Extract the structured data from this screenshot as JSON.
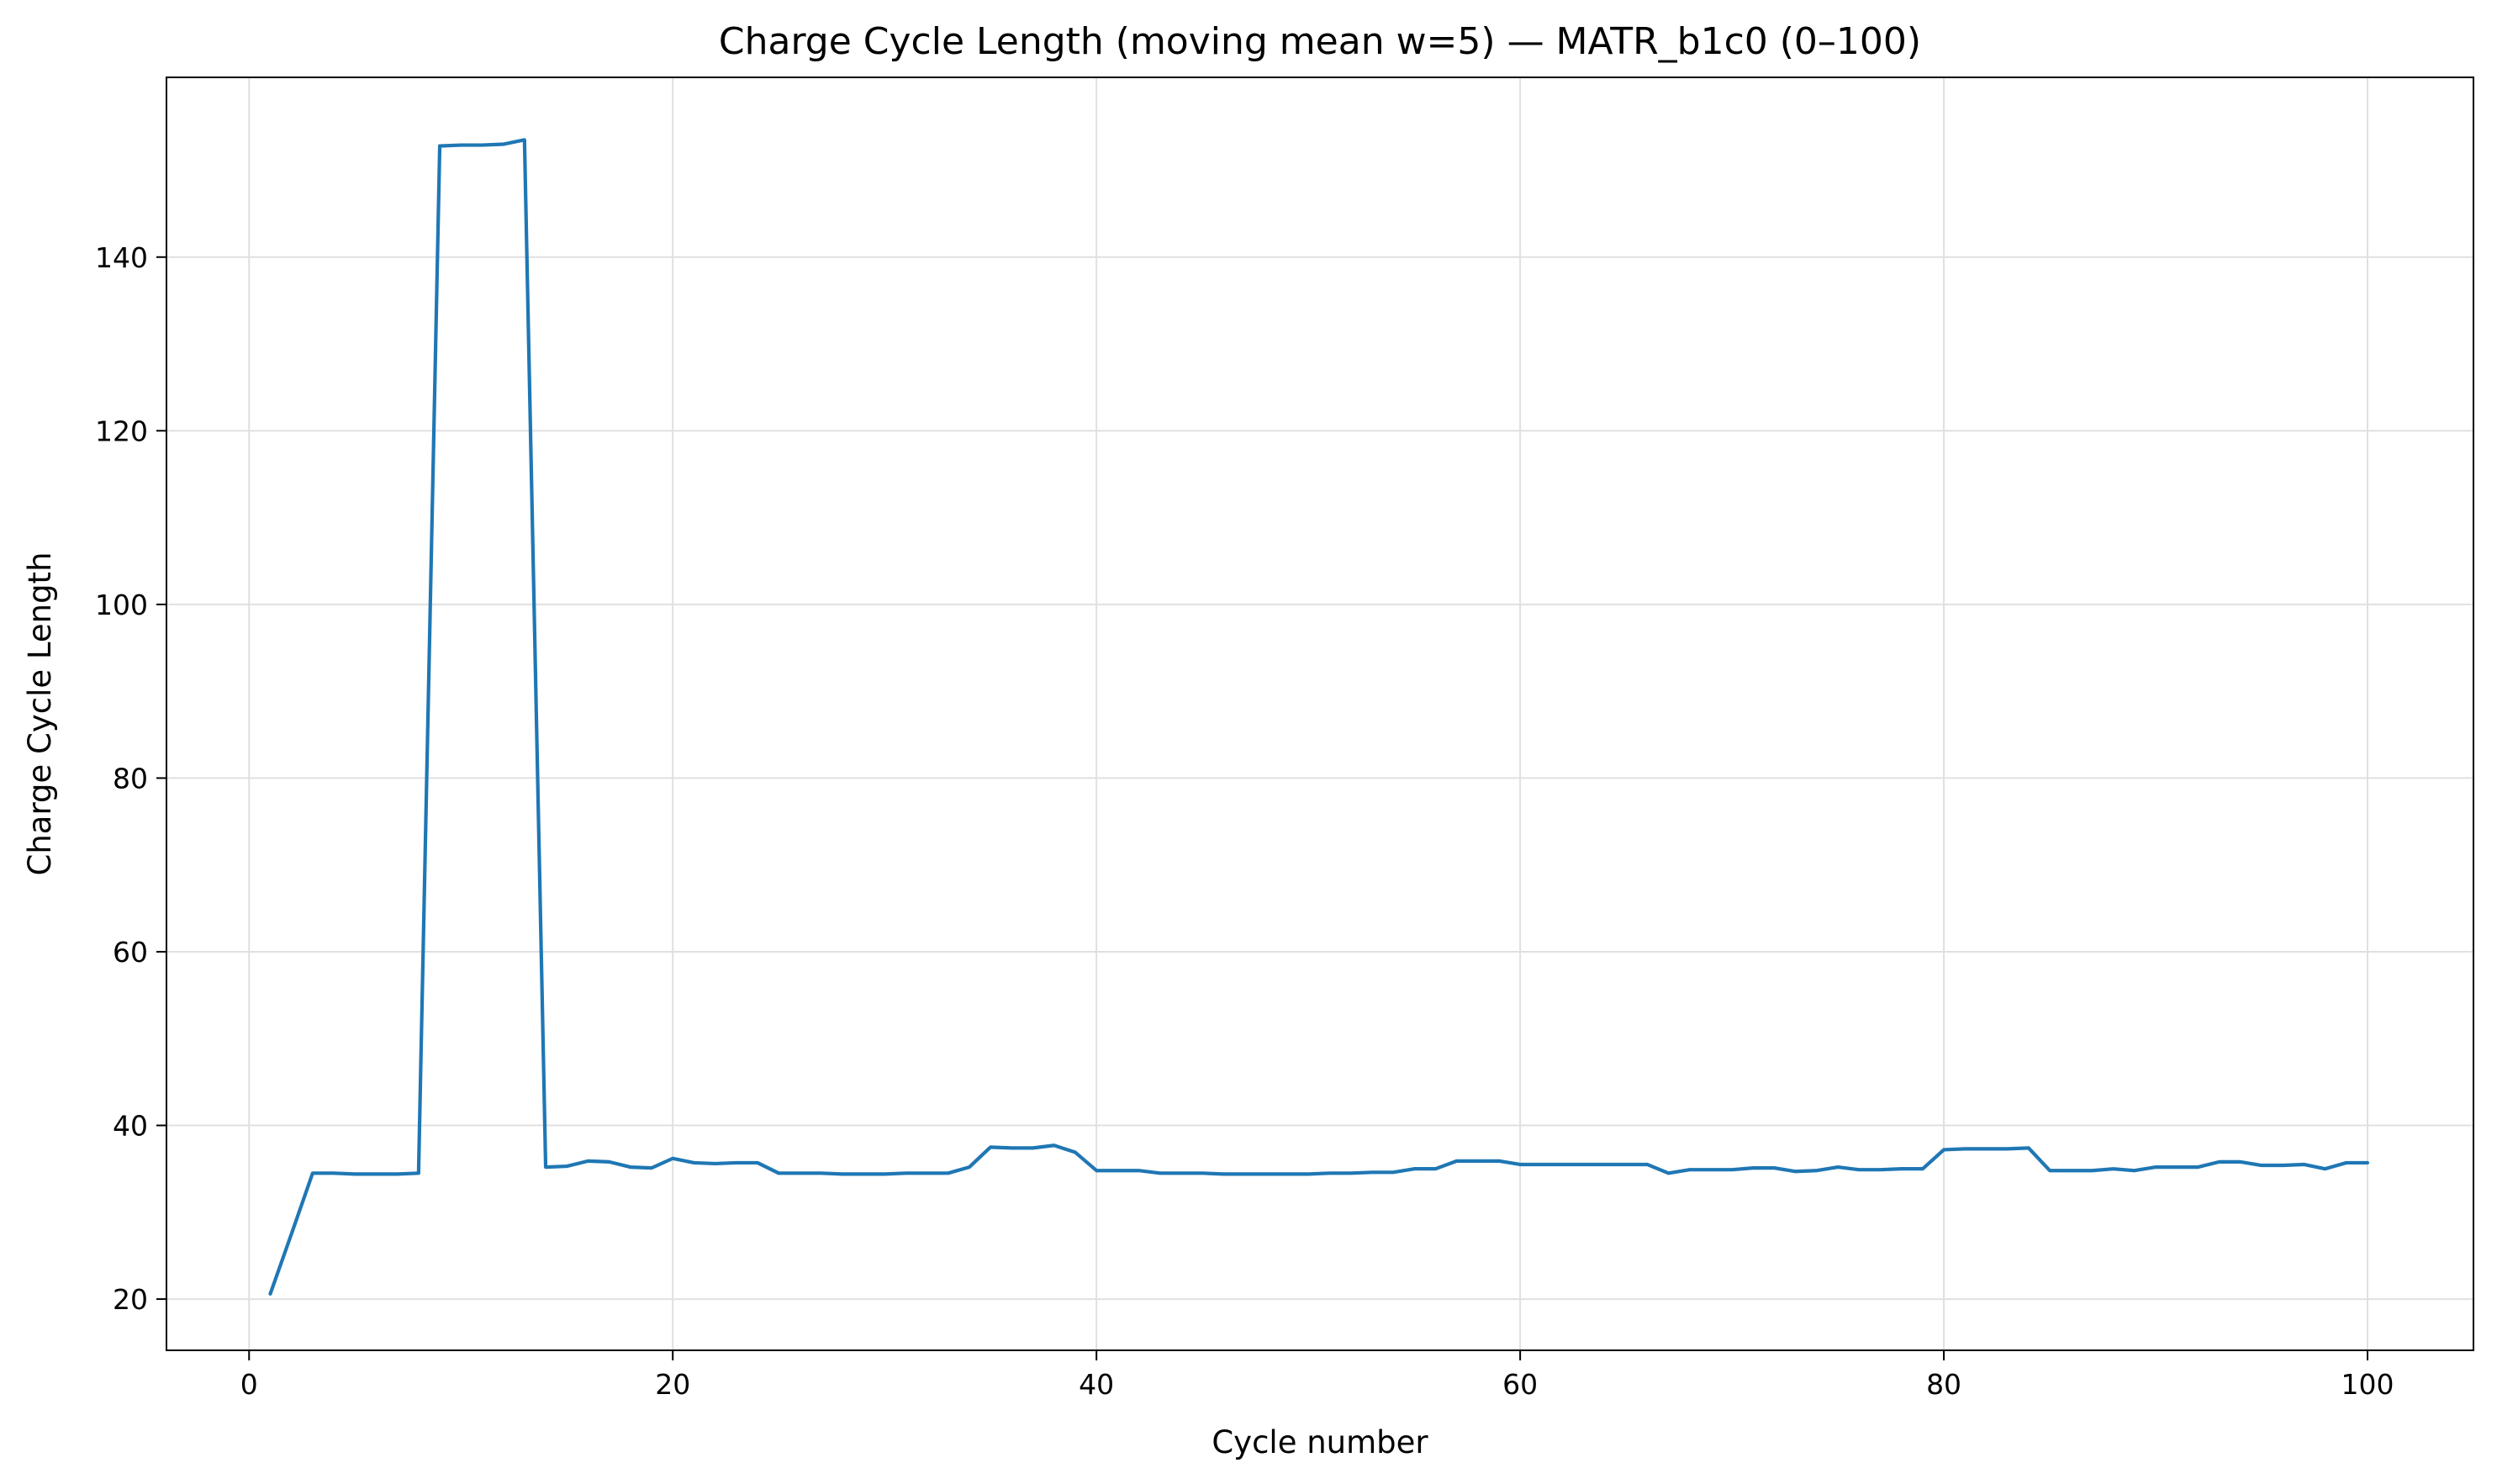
{
  "chart_data": {
    "type": "line",
    "title": "Charge Cycle Length (moving mean w=5) — MATR_b1c0 (0–100)",
    "xlabel": "Cycle number",
    "ylabel": "Charge Cycle Length",
    "xlim": [
      -3.9,
      105
    ],
    "ylim": [
      14.1,
      160.7
    ],
    "xticks": [
      0,
      20,
      40,
      60,
      80,
      100
    ],
    "yticks": [
      20,
      40,
      60,
      80,
      100,
      120,
      140
    ],
    "grid": true,
    "line_color": "#1f77b4",
    "grid_color": "#e0e0e0",
    "series": [
      {
        "x": [
          1,
          2,
          3,
          4,
          5,
          6,
          7,
          8,
          9,
          10,
          11,
          12,
          13,
          14,
          15,
          16,
          17,
          18,
          19,
          20,
          21,
          22,
          23,
          24,
          25,
          26,
          27,
          28,
          29,
          30,
          31,
          32,
          33,
          34,
          35,
          36,
          37,
          38,
          39,
          40,
          41,
          42,
          43,
          44,
          45,
          46,
          47,
          48,
          49,
          50,
          51,
          52,
          53,
          54,
          55,
          56,
          57,
          58,
          59,
          60,
          61,
          62,
          63,
          64,
          65,
          66,
          67,
          68,
          69,
          70,
          71,
          72,
          73,
          74,
          75,
          76,
          77,
          78,
          79,
          80,
          81,
          82,
          83,
          84,
          85,
          86,
          87,
          88,
          89,
          90,
          91,
          92,
          93,
          94,
          95,
          96,
          97,
          98,
          99,
          100
        ],
        "values": [
          20.6,
          27.5,
          34.5,
          34.5,
          34.4,
          34.4,
          34.4,
          34.5,
          152.8,
          152.9,
          152.9,
          153.0,
          153.5,
          35.2,
          35.3,
          35.9,
          35.8,
          35.2,
          35.1,
          36.2,
          35.7,
          35.6,
          35.7,
          35.7,
          34.5,
          34.5,
          34.5,
          34.4,
          34.4,
          34.4,
          34.5,
          34.5,
          34.5,
          35.2,
          37.5,
          37.4,
          37.4,
          37.7,
          36.9,
          34.8,
          34.8,
          34.8,
          34.5,
          34.5,
          34.5,
          34.4,
          34.4,
          34.4,
          34.4,
          34.4,
          34.5,
          34.5,
          34.6,
          34.6,
          35.0,
          35.0,
          35.9,
          35.9,
          35.9,
          35.5,
          35.5,
          35.5,
          35.5,
          35.5,
          35.5,
          35.5,
          34.5,
          34.9,
          34.9,
          34.9,
          35.1,
          35.1,
          34.7,
          34.8,
          35.2,
          34.9,
          34.9,
          35.0,
          35.0,
          37.2,
          37.3,
          37.3,
          37.3,
          37.4,
          34.8,
          34.8,
          34.8,
          35.0,
          34.8,
          35.2,
          35.2,
          35.2,
          35.8,
          35.8,
          35.4,
          35.4,
          35.5,
          35.0,
          35.7,
          35.7
        ]
      }
    ]
  }
}
